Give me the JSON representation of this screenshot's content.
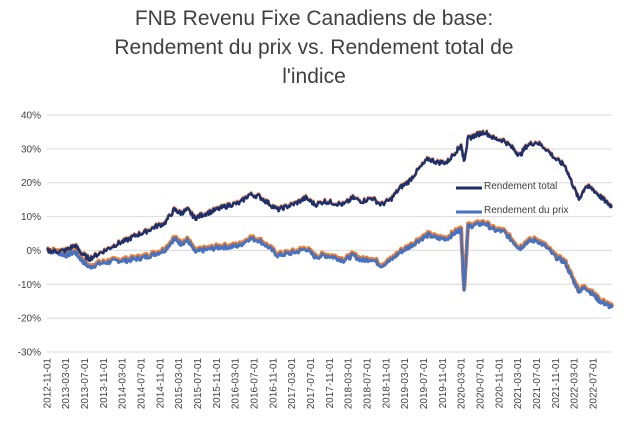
{
  "title": {
    "line1": "FNB Revenu Fixe Canadiens de base:",
    "line2": "Rendement du prix vs. Rendement total de",
    "line3": "l'indice"
  },
  "chart_data": {
    "type": "line",
    "ylim": [
      -30,
      40
    ],
    "yticks": [
      "-30%",
      "-20%",
      "-10%",
      "0%",
      "10%",
      "20%",
      "30%",
      "40%"
    ],
    "yticks_values": [
      -30,
      -20,
      -10,
      0,
      10,
      20,
      30,
      40
    ],
    "x_start": "2012-11-01",
    "x_end": "2022-11-01",
    "xtick_labels": [
      "2012-11-01",
      "2013-03-01",
      "2013-07-01",
      "2013-11-01",
      "2014-03-01",
      "2014-07-01",
      "2014-11-01",
      "2015-03-01",
      "2015-07-01",
      "2015-11-01",
      "2016-03-01",
      "2016-07-01",
      "2016-11-01",
      "2017-03-01",
      "2017-07-01",
      "2017-11-01",
      "2018-03-01",
      "2018-07-01",
      "2018-11-01",
      "2019-03-01",
      "2019-07-01",
      "2019-11-01",
      "2020-03-01",
      "2020-07-01",
      "2020-11-01",
      "2021-03-01",
      "2021-07-01",
      "2021-11-01",
      "2022-03-01",
      "2022-07-01"
    ],
    "legend_position": "right",
    "grid": true,
    "series": [
      {
        "name": "Rendement total",
        "color": "#1f2f6b",
        "x": [
          "2012-11-01",
          "2013-01-01",
          "2013-03-01",
          "2013-05-01",
          "2013-06-15",
          "2013-08-01",
          "2013-10-01",
          "2013-12-01",
          "2014-02-01",
          "2014-04-01",
          "2014-06-01",
          "2014-08-01",
          "2014-10-01",
          "2014-12-01",
          "2015-02-01",
          "2015-03-15",
          "2015-05-01",
          "2015-06-15",
          "2015-08-01",
          "2015-10-01",
          "2015-12-01",
          "2016-02-01",
          "2016-04-01",
          "2016-06-01",
          "2016-08-01",
          "2016-10-01",
          "2016-12-01",
          "2017-02-01",
          "2017-04-01",
          "2017-06-01",
          "2017-08-01",
          "2017-10-01",
          "2017-12-01",
          "2018-02-01",
          "2018-04-01",
          "2018-06-01",
          "2018-08-01",
          "2018-10-01",
          "2018-12-01",
          "2019-02-01",
          "2019-04-01",
          "2019-06-01",
          "2019-08-01",
          "2019-10-01",
          "2019-12-01",
          "2020-02-01",
          "2020-03-01",
          "2020-03-20",
          "2020-04-15",
          "2020-06-01",
          "2020-08-01",
          "2020-10-01",
          "2020-12-01",
          "2021-02-01",
          "2021-03-15",
          "2021-05-01",
          "2021-07-01",
          "2021-09-01",
          "2021-11-01",
          "2022-01-01",
          "2022-02-15",
          "2022-04-01",
          "2022-05-15",
          "2022-07-01",
          "2022-08-15",
          "2022-10-01",
          "2022-11-01"
        ],
        "values": [
          0.0,
          -0.3,
          0.0,
          1.5,
          -1.0,
          -2.5,
          -1.0,
          0.5,
          2.0,
          3.0,
          4.5,
          5.5,
          7.0,
          8.0,
          12.0,
          11.0,
          12.0,
          9.5,
          10.5,
          11.5,
          12.5,
          13.5,
          14.0,
          16.5,
          16.0,
          14.0,
          12.0,
          13.0,
          14.0,
          15.5,
          13.5,
          14.5,
          14.0,
          13.5,
          15.5,
          14.5,
          15.5,
          13.5,
          15.0,
          18.5,
          20.5,
          24.0,
          27.0,
          26.0,
          26.0,
          29.5,
          31.0,
          26.5,
          33.0,
          34.0,
          35.0,
          33.0,
          32.5,
          30.0,
          28.0,
          31.0,
          32.0,
          30.0,
          27.0,
          25.0,
          20.0,
          15.0,
          19.0,
          18.0,
          16.0,
          14.0,
          13.0
        ]
      },
      {
        "name": "Rendement du prix",
        "color": "#4472c4",
        "band_color": "#ed7d31",
        "x": [
          "2012-11-01",
          "2013-01-01",
          "2013-03-01",
          "2013-05-01",
          "2013-06-15",
          "2013-08-01",
          "2013-10-01",
          "2013-12-01",
          "2014-02-01",
          "2014-04-01",
          "2014-06-01",
          "2014-08-01",
          "2014-10-01",
          "2014-12-01",
          "2015-02-01",
          "2015-03-15",
          "2015-05-01",
          "2015-06-15",
          "2015-08-01",
          "2015-10-01",
          "2015-12-01",
          "2016-02-01",
          "2016-04-01",
          "2016-06-01",
          "2016-08-01",
          "2016-10-01",
          "2016-12-01",
          "2017-02-01",
          "2017-04-01",
          "2017-06-01",
          "2017-08-01",
          "2017-10-01",
          "2017-12-01",
          "2018-02-01",
          "2018-04-01",
          "2018-06-01",
          "2018-08-01",
          "2018-10-01",
          "2018-12-01",
          "2019-02-01",
          "2019-04-01",
          "2019-06-01",
          "2019-08-01",
          "2019-10-01",
          "2019-12-01",
          "2020-02-01",
          "2020-03-01",
          "2020-03-20",
          "2020-04-15",
          "2020-06-01",
          "2020-08-01",
          "2020-10-01",
          "2020-12-01",
          "2021-02-01",
          "2021-03-15",
          "2021-05-01",
          "2021-07-01",
          "2021-09-01",
          "2021-11-01",
          "2022-01-01",
          "2022-02-15",
          "2022-04-01",
          "2022-05-15",
          "2022-07-01",
          "2022-08-15",
          "2022-10-01",
          "2022-11-01"
        ],
        "values": [
          0.0,
          -0.5,
          -1.5,
          -0.5,
          -3.0,
          -5.0,
          -4.0,
          -3.5,
          -3.0,
          -3.0,
          -2.5,
          -2.0,
          -1.0,
          0.0,
          3.5,
          2.0,
          3.0,
          -0.5,
          0.0,
          0.5,
          1.0,
          1.0,
          1.5,
          3.5,
          3.0,
          1.0,
          -1.5,
          -1.0,
          -0.5,
          0.5,
          -2.0,
          -1.5,
          -2.0,
          -3.0,
          -1.5,
          -3.0,
          -2.5,
          -4.5,
          -3.0,
          -0.5,
          1.0,
          3.0,
          4.5,
          3.5,
          3.5,
          5.5,
          6.0,
          -12.0,
          7.0,
          7.5,
          8.0,
          6.0,
          5.5,
          2.5,
          0.5,
          2.5,
          3.0,
          1.0,
          -2.0,
          -3.5,
          -8.0,
          -12.0,
          -11.0,
          -13.0,
          -15.0,
          -16.0,
          -17.0
        ]
      }
    ]
  }
}
